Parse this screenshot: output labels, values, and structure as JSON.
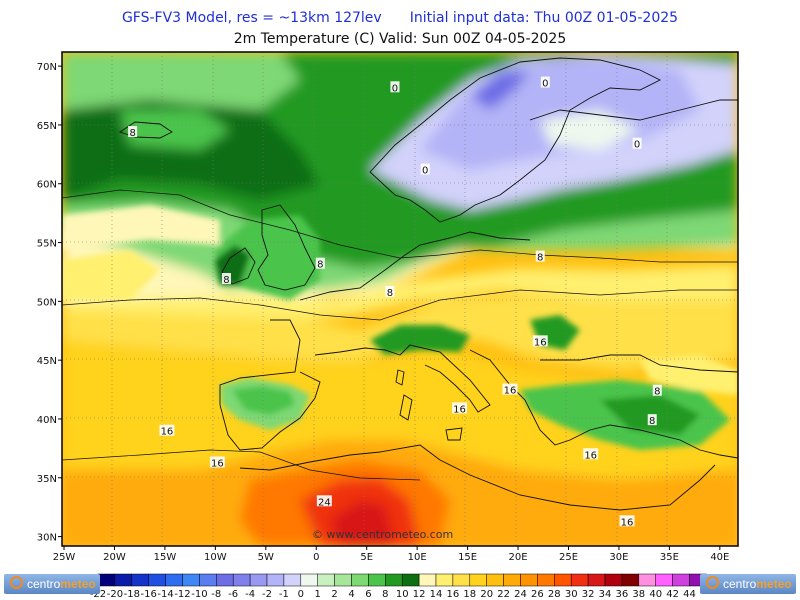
{
  "header": {
    "model": "GFS-FV3 Model, res = ~13km 127lev",
    "init": "Initial input data: Thu 00Z 01-05-2025",
    "product": "2m Temperature (C)  Valid: Sun 00Z 04-05-2025"
  },
  "map": {
    "lon_labels": [
      "25W",
      "20W",
      "15W",
      "10W",
      "5W",
      "0",
      "5E",
      "10E",
      "15E",
      "20E",
      "25E",
      "30E",
      "35E",
      "40E"
    ],
    "lat_labels": [
      "70N",
      "65N",
      "60N",
      "55N",
      "50N",
      "45N",
      "40N",
      "35N",
      "30N"
    ],
    "contour_labels": [
      {
        "text": "0",
        "lon": 22.7,
        "lat": 68.6
      },
      {
        "text": "0",
        "lon": 7.8,
        "lat": 68.2
      },
      {
        "text": "0",
        "lon": 10.8,
        "lat": 61.2
      },
      {
        "text": "0",
        "lon": 31.8,
        "lat": 63.4
      },
      {
        "text": "8",
        "lon": -18.2,
        "lat": 64.4
      },
      {
        "text": "8",
        "lon": 0.4,
        "lat": 53.2
      },
      {
        "text": "8",
        "lon": -8.9,
        "lat": 51.9
      },
      {
        "text": "8",
        "lon": 7.3,
        "lat": 50.8
      },
      {
        "text": "8",
        "lon": 22.2,
        "lat": 53.8
      },
      {
        "text": "16",
        "lon": 22.2,
        "lat": 46.6
      },
      {
        "text": "16",
        "lon": 19.2,
        "lat": 42.5
      },
      {
        "text": "16",
        "lon": 14.2,
        "lat": 40.9
      },
      {
        "text": "16",
        "lon": -14.8,
        "lat": 39.0
      },
      {
        "text": "16",
        "lon": -9.8,
        "lat": 36.3
      },
      {
        "text": "8",
        "lon": 33.8,
        "lat": 42.4
      },
      {
        "text": "8",
        "lon": 33.3,
        "lat": 39.9
      },
      {
        "text": "16",
        "lon": 27.2,
        "lat": 37.0
      },
      {
        "text": "24",
        "lon": 0.8,
        "lat": 33.0
      },
      {
        "text": "16",
        "lon": 30.8,
        "lat": 31.3
      }
    ],
    "watermark": "© www.centrometeo.com"
  },
  "colorbar": {
    "labels": [
      "-22",
      "-20",
      "-18",
      "-16",
      "-14",
      "-12",
      "-10",
      "-8",
      "-6",
      "-4",
      "-2",
      "-1",
      "0",
      "1",
      "2",
      "4",
      "6",
      "8",
      "10",
      "12",
      "14",
      "16",
      "18",
      "20",
      "22",
      "24",
      "26",
      "28",
      "30",
      "32",
      "34",
      "36",
      "38",
      "40",
      "42",
      "44"
    ],
    "colors": [
      "#00007a",
      "#0b1aa8",
      "#1533c8",
      "#1f4fe0",
      "#2e6cf0",
      "#3f87f5",
      "#5a7df0",
      "#6d6de6",
      "#8080ec",
      "#9999f2",
      "#b3b3f7",
      "#d2d2fb",
      "#eef8ee",
      "#c8f0c0",
      "#a5e69a",
      "#7ed874",
      "#4cc44c",
      "#229a22",
      "#0e6e12",
      "#fff7b8",
      "#fff070",
      "#ffe04a",
      "#ffd21e",
      "#ffbf10",
      "#ffaa08",
      "#ff9200",
      "#ff7800",
      "#ff5400",
      "#f03010",
      "#d81818",
      "#b00010",
      "#800000",
      "#ff90e0",
      "#ff60ff",
      "#d040e0",
      "#9010b0"
    ]
  },
  "logos": {
    "left": {
      "part1": "centro",
      "part2": "meteo"
    },
    "right": {
      "part1": "centro",
      "part2": "meteo"
    }
  }
}
